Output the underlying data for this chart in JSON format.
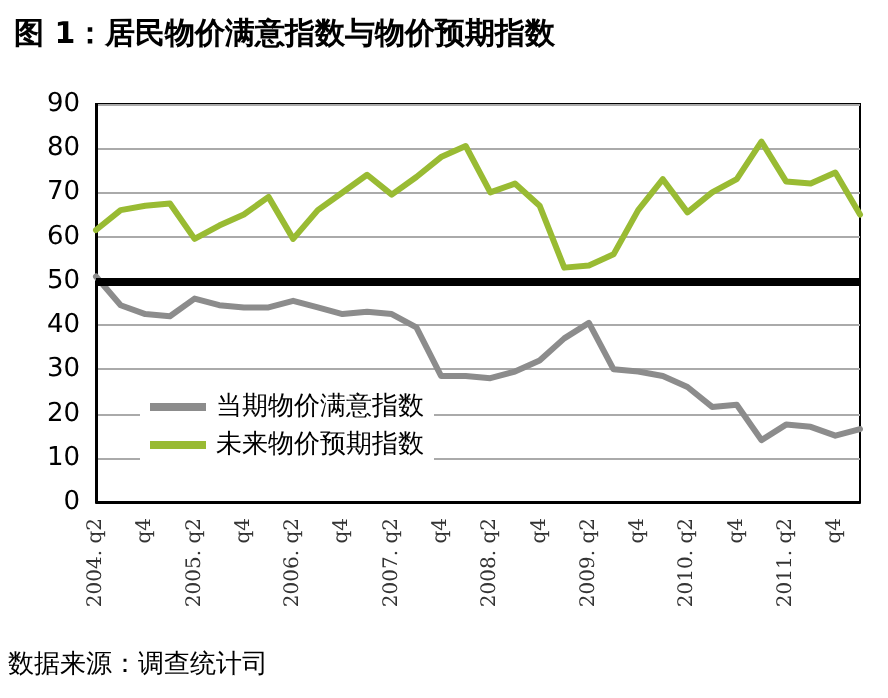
{
  "chart_data": {
    "type": "line",
    "title": "图 1：居民物价满意指数与物价预期指数",
    "categories": [
      "2004. q2",
      null,
      "q4",
      null,
      "2005. q2",
      null,
      "q4",
      null,
      "2006. q2",
      null,
      "q4",
      null,
      "2007. q2",
      null,
      "q4",
      null,
      "2008. q2",
      null,
      "q4",
      null,
      "2009. q2",
      null,
      "q4",
      null,
      "2010. q2",
      null,
      "q4",
      null,
      "2011. q2",
      null,
      "q4",
      null
    ],
    "series": [
      {
        "name": "当期物价满意指数",
        "color": "#8c8c8c",
        "values": [
          51,
          44.5,
          42.5,
          42,
          46,
          44.5,
          44,
          44,
          45.5,
          44,
          42.5,
          43,
          42.5,
          39.5,
          28.5,
          28.5,
          28,
          29.5,
          32,
          37,
          40.5,
          30,
          29.5,
          28.5,
          26,
          21.5,
          22,
          14,
          17.5,
          17,
          15,
          16.5
        ]
      },
      {
        "name": "未来物价预期指数",
        "color": "#99bb33",
        "values": [
          61.5,
          66,
          67,
          67.5,
          59.5,
          62.5,
          65,
          69,
          59.5,
          66,
          70,
          74,
          69.5,
          73.5,
          78,
          80.5,
          70,
          72,
          67,
          53,
          53.5,
          56,
          66,
          73,
          65.5,
          70,
          73,
          81.5,
          72.5,
          72,
          74.5,
          65
        ]
      }
    ],
    "ylim": [
      0,
      90
    ],
    "yticks": [
      0,
      10,
      20,
      30,
      40,
      50,
      60,
      70,
      80,
      90
    ],
    "grid": "y",
    "legend": "bottom left",
    "marker": "none",
    "line_style": "solid",
    "ref_lines": [
      {
        "axis": "y",
        "value": 50,
        "color": "#000000"
      }
    ],
    "annotations": [
      "数据来源：调查统计司"
    ]
  }
}
